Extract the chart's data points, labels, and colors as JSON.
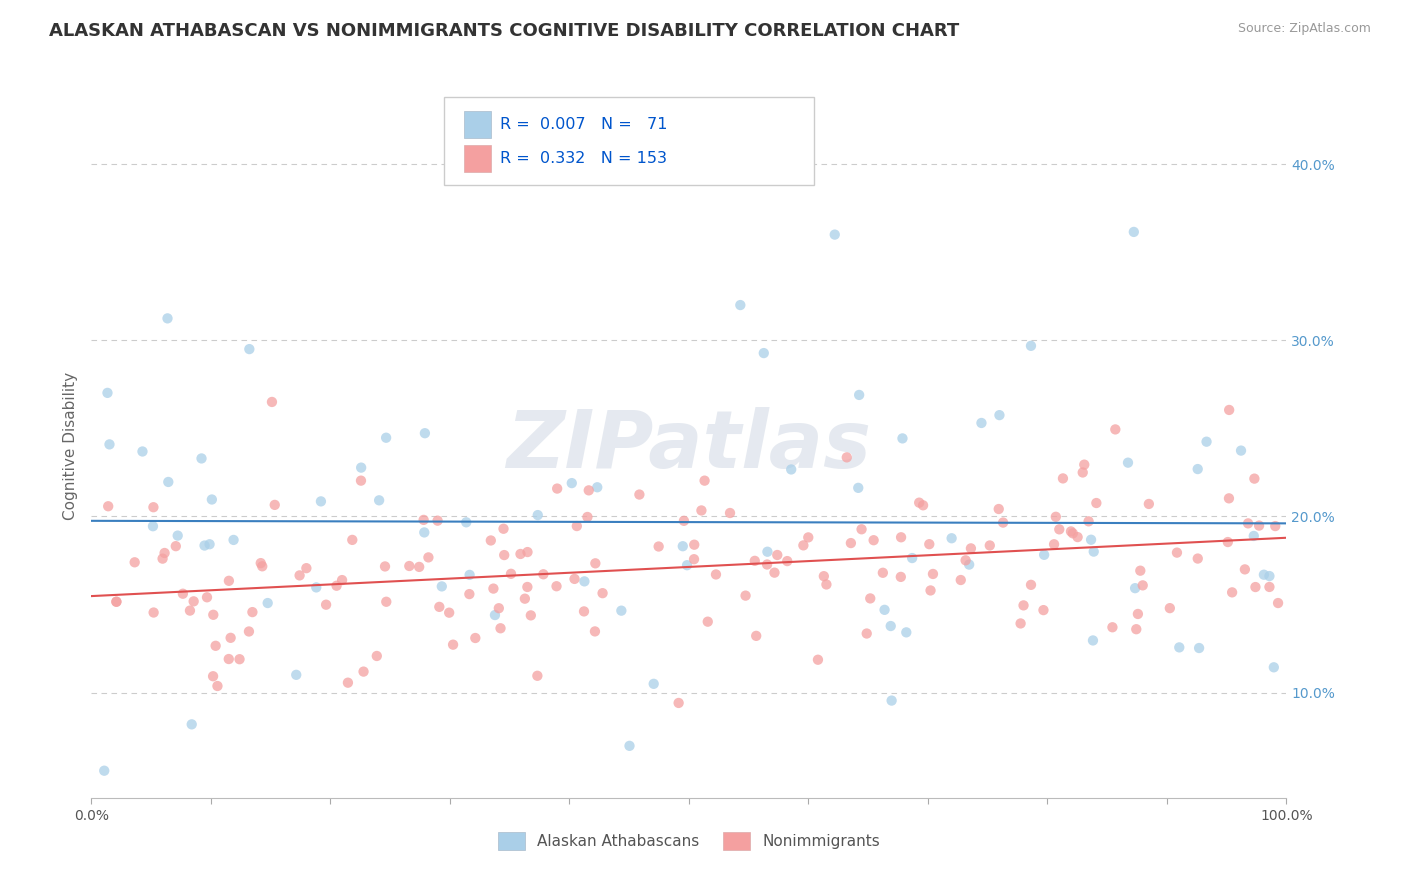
{
  "title": "ALASKAN ATHABASCAN VS NONIMMIGRANTS COGNITIVE DISABILITY CORRELATION CHART",
  "source_text": "Source: ZipAtlas.com",
  "ylabel": "Cognitive Disability",
  "watermark": "ZIPatlas",
  "group1_label": "Alaskan Athabascans",
  "group2_label": "Nonimmigrants",
  "group1_color": "#aacfe8",
  "group2_color": "#f4a0a0",
  "group1_line_color": "#3a7fbf",
  "group2_line_color": "#e05050",
  "xlim": [
    0.0,
    1.0
  ],
  "ylim": [
    0.04,
    0.44
  ],
  "background_color": "#ffffff",
  "grid_color": "#cccccc",
  "title_fontsize": 13,
  "axis_label_fontsize": 11,
  "tick_fontsize": 10,
  "scatter_size": 55,
  "scatter_alpha": 0.75
}
